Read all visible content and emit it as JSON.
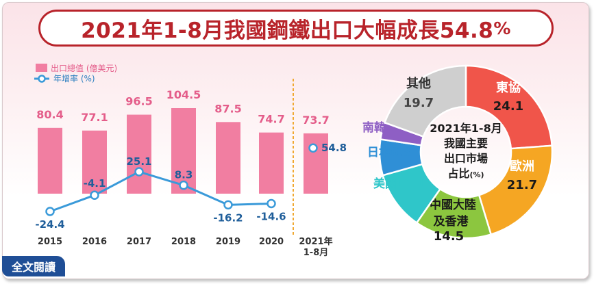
{
  "title": "2021年1-8月我國鋼鐵出口大幅成長54.8",
  "title_pct": "%",
  "read_more": "全文閱讀",
  "colors": {
    "title": "#b8232a",
    "bar": "#f17ea1",
    "line": "#3a9ad9",
    "button": "#1f4e96",
    "divider": "#f0a830"
  },
  "chart_data": [
    {
      "type": "bar",
      "categories": [
        "2015",
        "2016",
        "2017",
        "2018",
        "2019",
        "2020",
        "2021年 1-8月"
      ],
      "series": [
        {
          "name": "出口總值 (億美元)",
          "type": "bar",
          "values": [
            80.4,
            77.1,
            96.5,
            104.5,
            87.5,
            74.7,
            73.7
          ]
        },
        {
          "name": "年增率 (%)",
          "type": "line",
          "values": [
            -24.4,
            -4.1,
            25.1,
            8.3,
            -16.2,
            -14.6,
            54.8
          ]
        }
      ],
      "legend": "top-left"
    },
    {
      "type": "pie",
      "title": "2021年1-8月 我國主要 出口市場 占比(%)",
      "slices": [
        {
          "label": "東協",
          "value": 24.1,
          "color": "#f0554a"
        },
        {
          "label": "歐洲",
          "value": 21.7,
          "color": "#f5a623"
        },
        {
          "label": "中國大陸 及香港",
          "value": 14.5,
          "color": "#8cc63f"
        },
        {
          "label": "美國",
          "value": 11.1,
          "color": "#2fc6c9"
        },
        {
          "label": "日本",
          "value": 6.8,
          "color": "#2f8fd6"
        },
        {
          "label": "南韓",
          "value": 3.2,
          "color": "#8e5fc4"
        },
        {
          "label": "其他",
          "value": 19.7,
          "color": "#cfcfcf"
        }
      ]
    }
  ]
}
